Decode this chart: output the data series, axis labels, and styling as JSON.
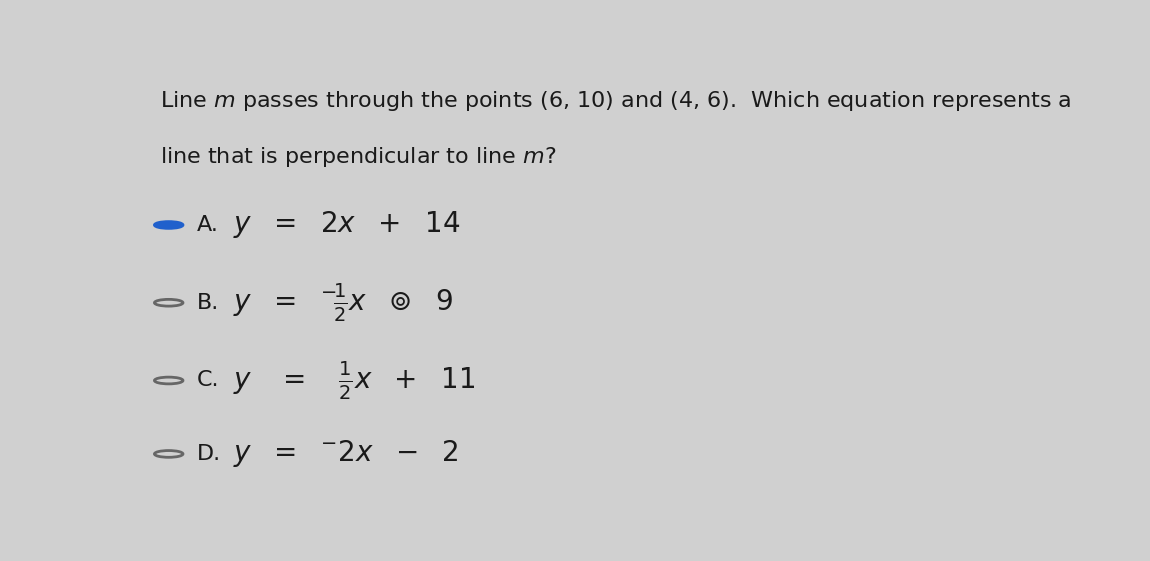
{
  "background_color": "#d0d0d0",
  "title_line1": "Line $m$ passes through the points (6, 10) and (4, 6).  Which equation represents a",
  "title_line2": "line that is perpendicular to line $m$?",
  "options": [
    {
      "label": "A.",
      "selected": true
    },
    {
      "label": "B.",
      "selected": false
    },
    {
      "label": "C.",
      "selected": false
    },
    {
      "label": "D.",
      "selected": false
    }
  ],
  "text_color": "#1a1a1a",
  "selected_circle_fill": "#2060cc",
  "unselected_circle_fill": "#d0d0d0",
  "circle_edge_color": "#666666",
  "title_fontsize": 16,
  "option_label_fontsize": 16,
  "option_eq_fontsize": 20
}
